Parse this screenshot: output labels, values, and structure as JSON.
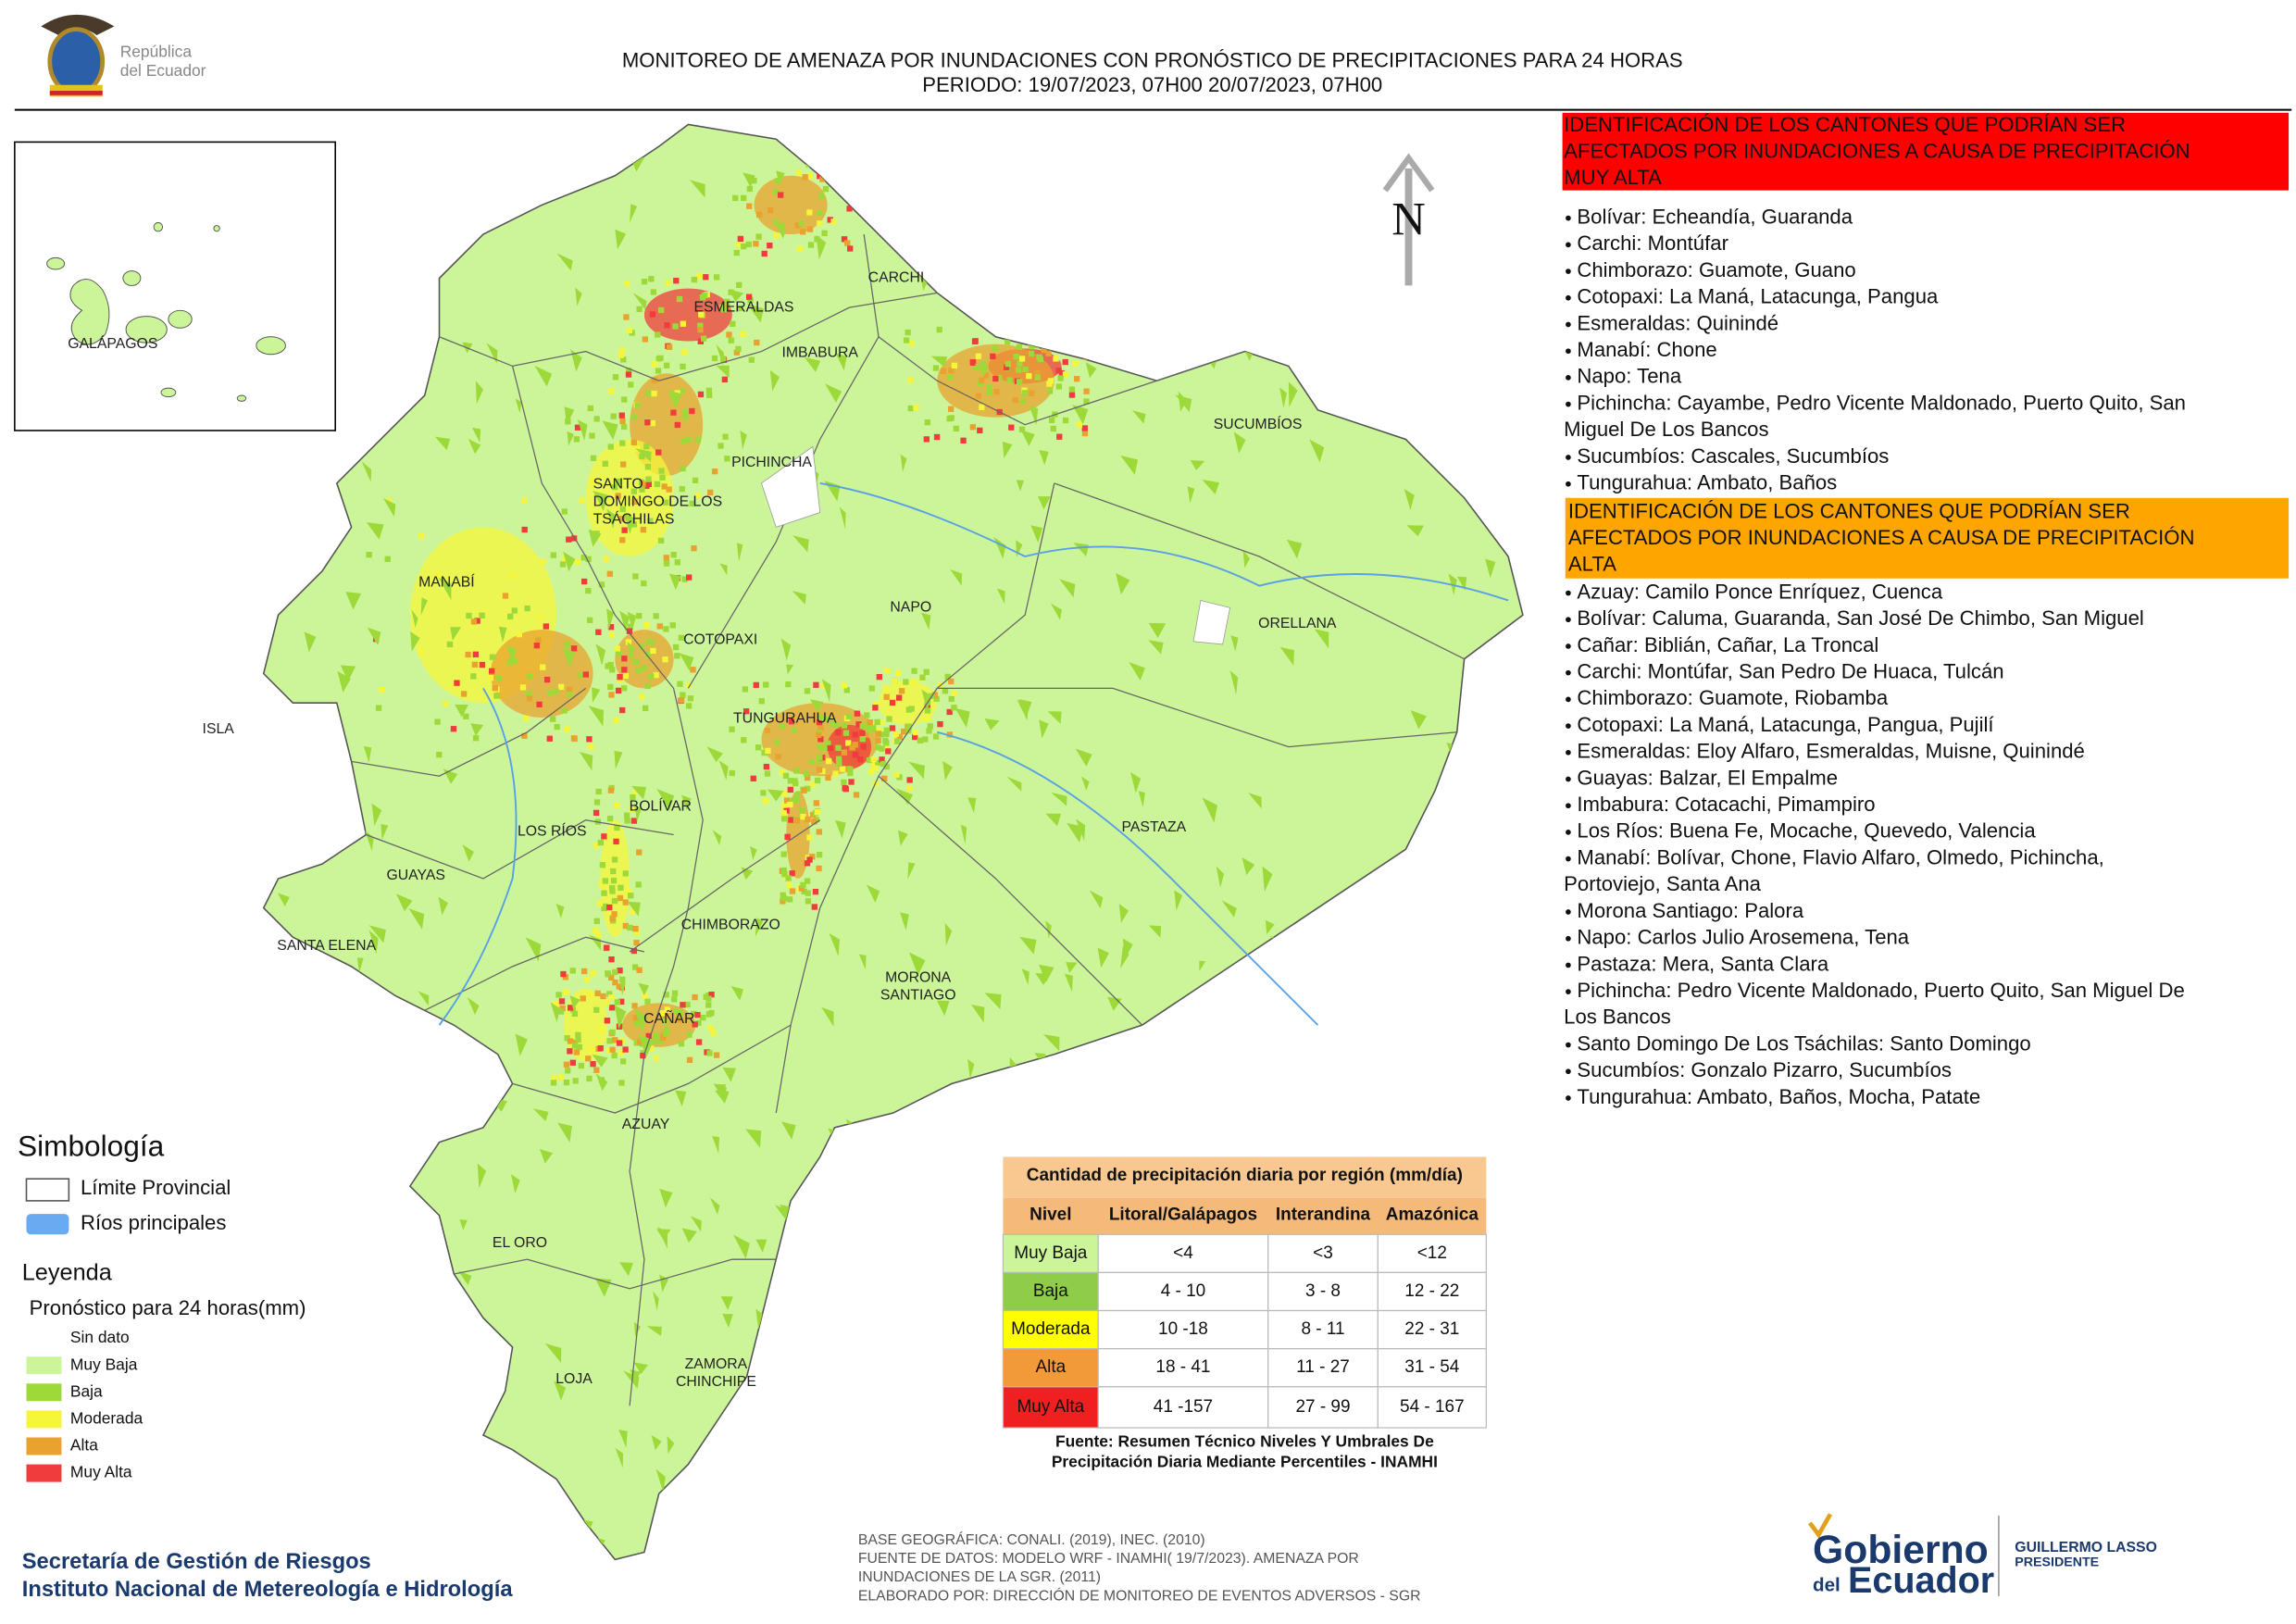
{
  "header": {
    "logo_text": [
      "República",
      "del Ecuador"
    ],
    "title": "MONITOREO DE AMENAZA POR INUNDACIONES  CON PRONÓSTICO DE  PRECIPITACIONES PARA 24 HORAS",
    "period": "PERIODO: 19/07/2023, 07H00 20/07/2023, 07H00"
  },
  "map": {
    "inset_label": "GALÁPAGOS",
    "north": "N",
    "provinces": [
      [
        "ESMERALDAS"
      ],
      [
        "CARCHI"
      ],
      [
        "IMBABURA"
      ],
      [
        "SUCUMBÍOS"
      ],
      [
        "PICHINCHA"
      ],
      [
        "SANTO",
        "DOMINGO DE LOS",
        "TSÁCHILAS"
      ],
      [
        "MANABÍ"
      ],
      [
        "NAPO"
      ],
      [
        "ORELLANA"
      ],
      [
        "COTOPAXI"
      ],
      [
        "ISLA"
      ],
      [
        "TUNGURAHUA"
      ],
      [
        "BOLÍVAR"
      ],
      [
        "LOS RÍOS"
      ],
      [
        "PASTAZA"
      ],
      [
        "GUAYAS"
      ],
      [
        "CHIMBORAZO"
      ],
      [
        "SANTA ELENA"
      ],
      [
        "MORONA",
        "SANTIAGO"
      ],
      [
        "CAÑAR"
      ],
      [
        "AZUAY"
      ],
      [
        "EL ORO"
      ],
      [
        "ZAMORA",
        "CHINCHIPE"
      ],
      [
        "LOJA"
      ]
    ]
  },
  "panel": {
    "very_high": {
      "heading": [
        "IDENTIFICACIÓN DE LOS CANTONES QUE PODRÍAN SER",
        "AFECTADOS POR INUNDACIONES  A CAUSA DE PRECIPITACIÓN",
        "MUY ALTA"
      ],
      "items": [
        [
          "Bolívar: Echeandía, Guaranda"
        ],
        [
          "Carchi: Montúfar"
        ],
        [
          "Chimborazo: Guamote, Guano"
        ],
        [
          "Cotopaxi: La Maná, Latacunga, Pangua"
        ],
        [
          "Esmeraldas: Quinindé"
        ],
        [
          "Manabí: Chone"
        ],
        [
          "Napo: Tena"
        ],
        [
          "Pichincha: Cayambe, Pedro Vicente Maldonado, Puerto Quito, San",
          "Miguel De Los Bancos"
        ],
        [
          "Sucumbíos: Cascales, Sucumbíos"
        ],
        [
          "Tungurahua: Ambato, Baños"
        ]
      ]
    },
    "high": {
      "heading": [
        "IDENTIFICACIÓN DE LOS CANTONES QUE  PODRÍAN SER",
        "AFECTADOS POR INUNDACIONES  A CAUSA DE PRECIPITACIÓN",
        "ALTA"
      ],
      "items": [
        [
          "Azuay: Camilo Ponce Enríquez, Cuenca"
        ],
        [
          "Bolívar: Caluma, Guaranda, San José De Chimbo, San Miguel"
        ],
        [
          "Cañar: Biblián, Cañar, La Troncal"
        ],
        [
          "Carchi: Montúfar, San Pedro De Huaca, Tulcán"
        ],
        [
          "Chimborazo: Guamote, Riobamba"
        ],
        [
          "Cotopaxi: La Maná, Latacunga, Pangua, Pujilí"
        ],
        [
          "Esmeraldas: Eloy Alfaro, Esmeraldas, Muisne, Quinindé"
        ],
        [
          "Guayas: Balzar, El Empalme"
        ],
        [
          "Imbabura: Cotacachi, Pimampiro"
        ],
        [
          "Los Ríos: Buena Fe, Mocache, Quevedo, Valencia"
        ],
        [
          "Manabí: Bolívar, Chone, Flavio Alfaro, Olmedo, Pichincha,",
          "Portoviejo, Santa Ana"
        ],
        [
          "Morona Santiago: Palora"
        ],
        [
          "Napo: Carlos Julio Arosemena, Tena"
        ],
        [
          "Pastaza: Mera, Santa Clara"
        ],
        [
          "Pichincha: Pedro Vicente Maldonado, Puerto Quito, San Miguel De",
          "Los Bancos"
        ],
        [
          "Santo Domingo De Los Tsáchilas: Santo Domingo"
        ],
        [
          "Sucumbíos: Gonzalo Pizarro, Sucumbíos"
        ],
        [
          "Tungurahua: Ambato, Baños, Mocha, Patate"
        ]
      ]
    }
  },
  "symbology": {
    "title": "Simbología",
    "items": [
      "Límite Provincial",
      "Ríos principales"
    ]
  },
  "legend": {
    "title": "Leyenda",
    "subtitle": "Pronóstico para 24 horas(mm)",
    "items": [
      "Sin dato",
      "Muy Baja",
      "Baja",
      "Moderada",
      "Alta",
      "Muy Alta"
    ]
  },
  "table": {
    "title": "Cantidad de precipitación diaria por región (mm/día)",
    "header": [
      "Nivel",
      "Litoral/Galápagos",
      "Interandina",
      "Amazónica"
    ],
    "rows": [
      [
        "Muy Baja",
        "<4",
        "<3",
        "<12"
      ],
      [
        "Baja",
        "4 - 10",
        "3 - 8",
        "12 - 22"
      ],
      [
        "Moderada",
        "10 -18",
        "8 - 11",
        "22 - 31"
      ],
      [
        "Alta",
        "18 - 41",
        "11 - 27",
        "31 - 54"
      ],
      [
        "Muy Alta",
        "41 -157",
        "27 - 99",
        "54 - 167"
      ]
    ],
    "source": [
      "Fuente: Resumen Técnico Niveles Y Umbrales De",
      "Precipitación Diaria Mediante Percentiles - INAMHI"
    ]
  },
  "footer": {
    "institutions": [
      "Secretaría de Gestión de Riesgos",
      "Instituto Nacional de Metereología e Hidrología"
    ],
    "credits": [
      "BASE GEOGRÁFICA: CONALI. (2019), INEC. (2010)",
      "FUENTE DE DATOS: MODELO WRF - INAMHI( 19/7/2023).  AMENAZA POR",
      "INUNDACIONES DE LA SGR. (2011)",
      "ELABORADO POR: DIRECCIÓN DE MONITOREO DE EVENTOS ADVERSOS - SGR"
    ],
    "logo": {
      "name": "Gobierno",
      "small": "del",
      "country": "Ecuador",
      "president": "GUILLERMO LASSO",
      "role": "PRESIDENTE"
    }
  }
}
